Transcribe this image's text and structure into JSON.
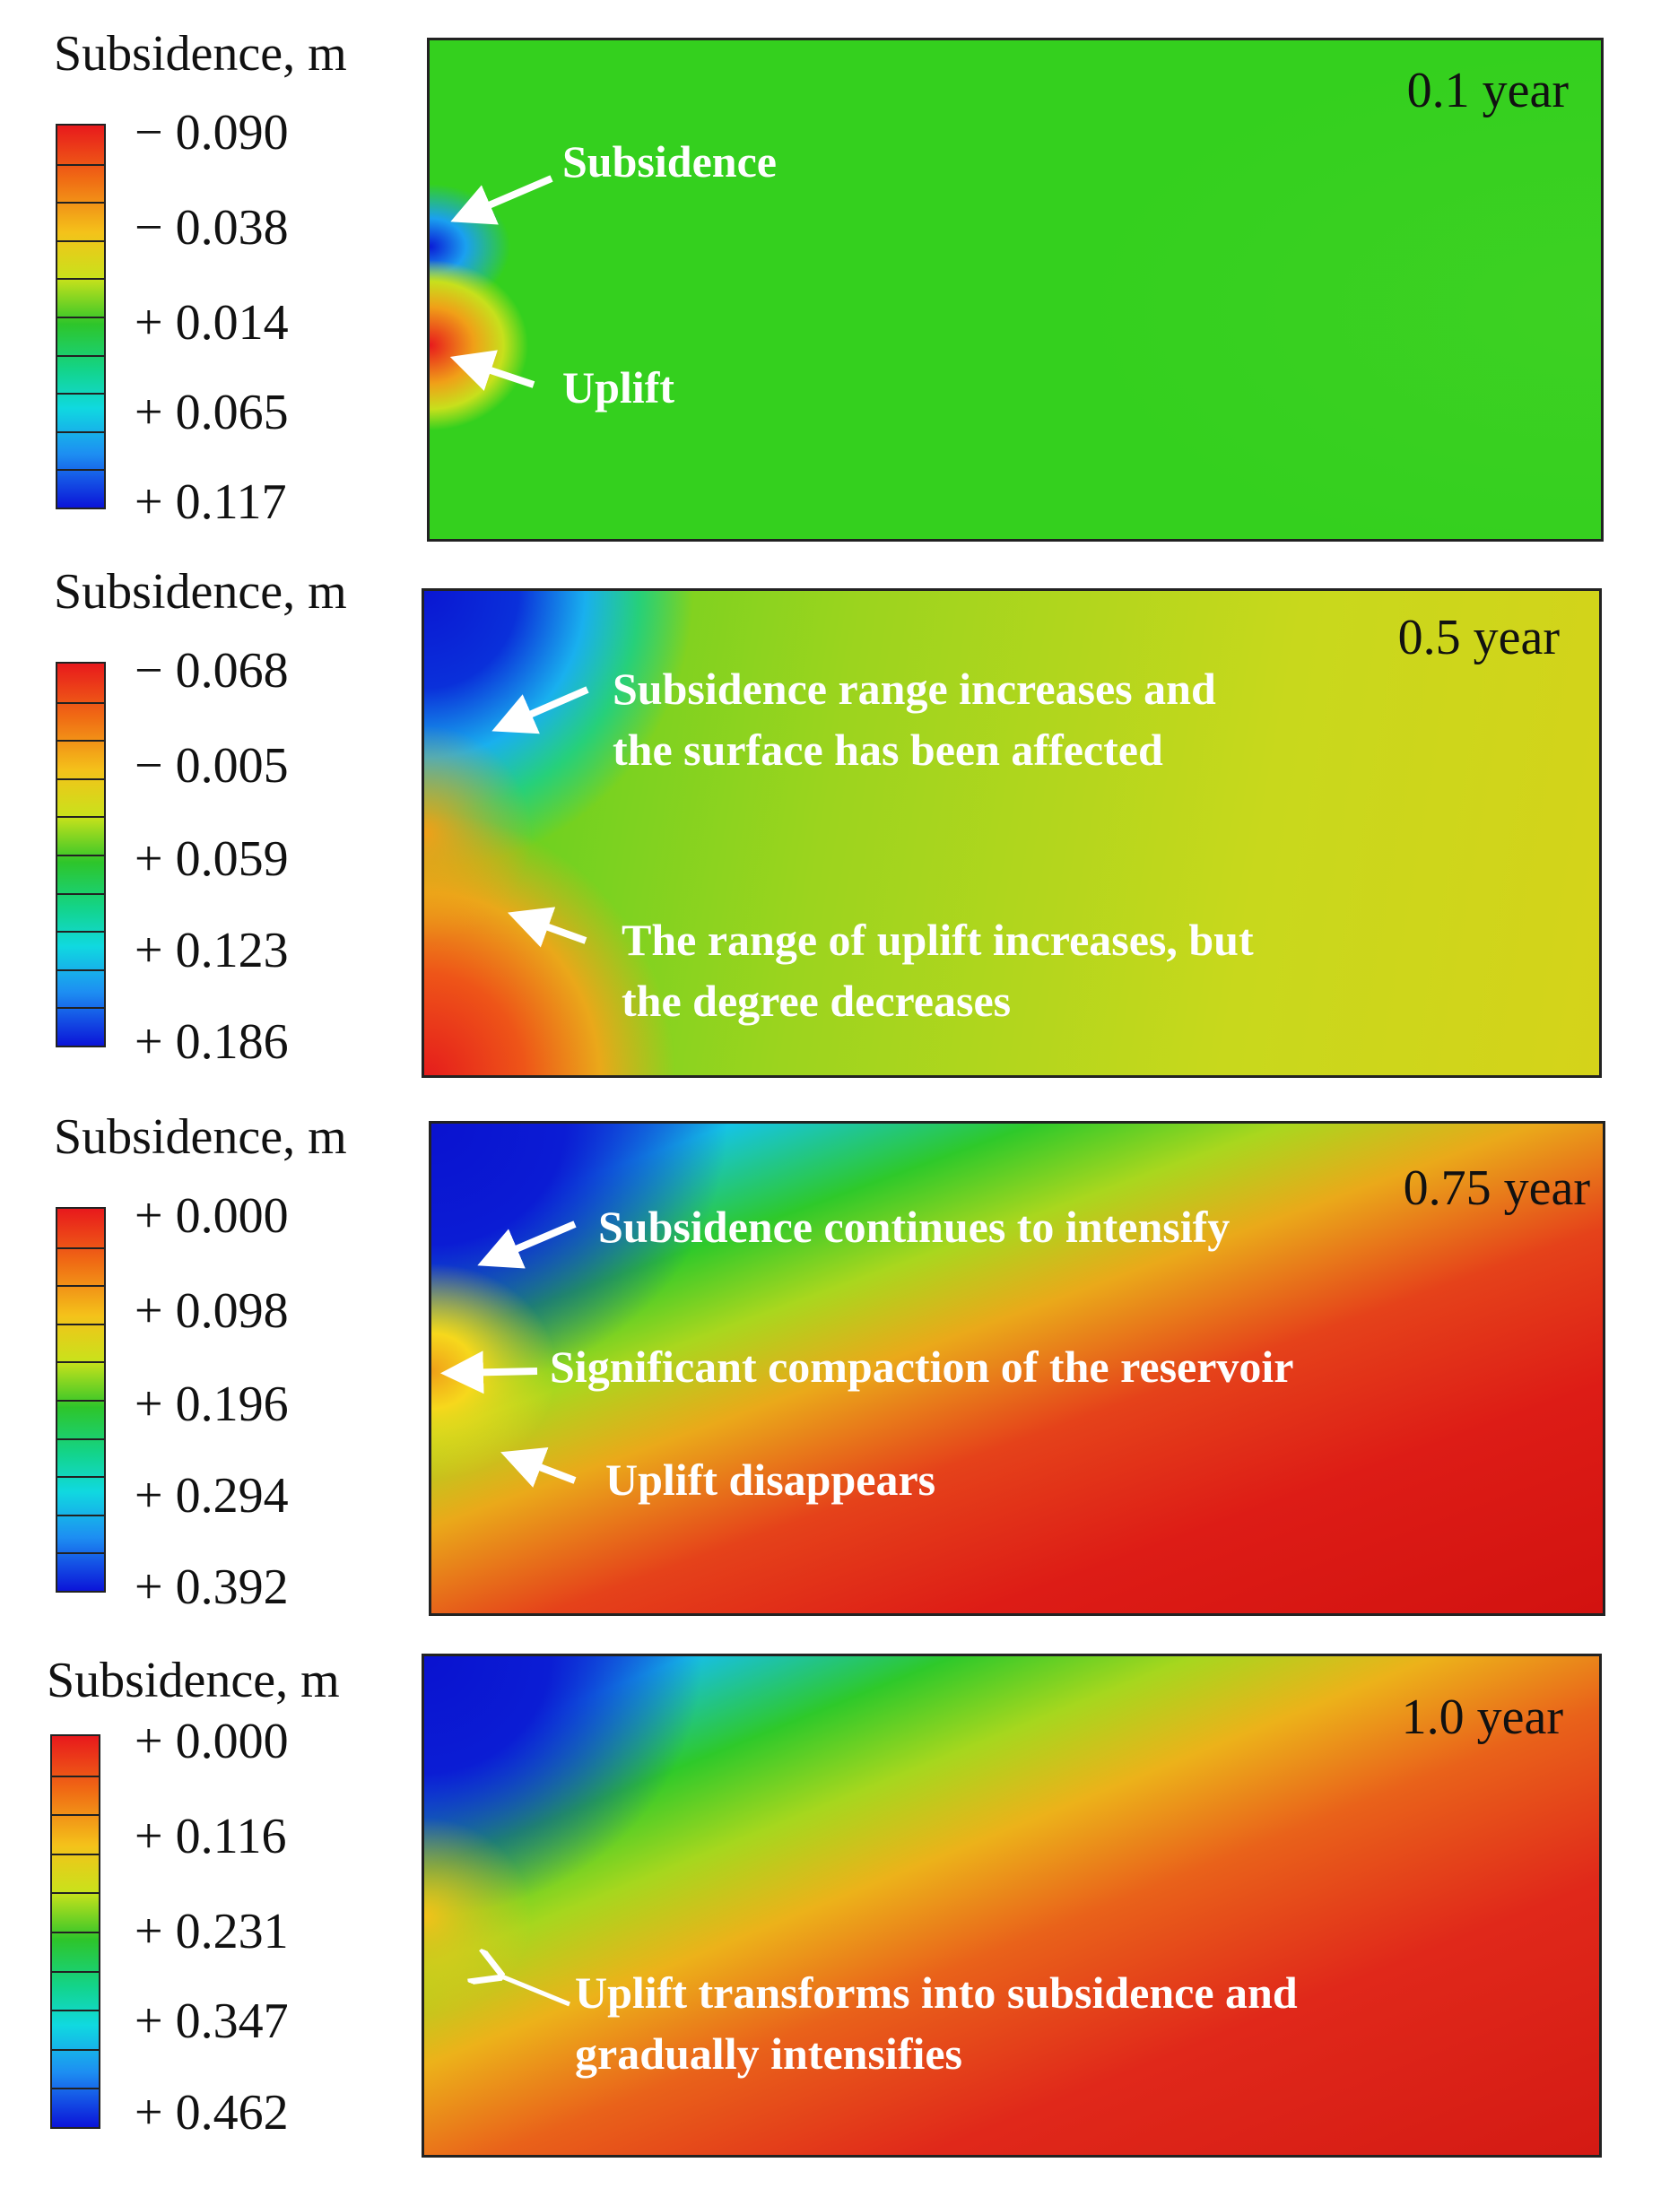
{
  "panels": [
    {
      "legend_title": "Subsidence, m",
      "ticks": [
        "− 0.090",
        "− 0.038",
        "+  0.014",
        "+  0.065",
        "+  0.117"
      ],
      "time": "0.1 year",
      "annotations": [
        "Subsidence",
        "Uplift"
      ]
    },
    {
      "legend_title": "Subsidence, m",
      "ticks": [
        "− 0.068",
        "− 0.005",
        "+  0.059",
        "+  0.123",
        "+  0.186"
      ],
      "time": "0.5 year",
      "annotations": [
        "Subsidence range increases and",
        "the surface has been affected",
        "The range of uplift increases, but",
        "the degree decreases"
      ]
    },
    {
      "legend_title": "Subsidence, m",
      "ticks": [
        "+ 0.000",
        "+  0.098",
        "+  0.196",
        "+  0.294",
        "+  0.392"
      ],
      "time": "0.75 year",
      "annotations": [
        "Subsidence continues to intensify",
        "Significant compaction of the reservoir",
        "Uplift disappears"
      ]
    },
    {
      "legend_title": "Subsidence, m",
      "ticks": [
        "+ 0.000",
        "+  0.116",
        "+  0.231",
        "+  0.347",
        "+  0.462"
      ],
      "time": "1.0 year",
      "annotations": [
        "Uplift transforms into subsidence and",
        "gradually intensifies"
      ]
    }
  ],
  "colors": {
    "red": "#e8191c",
    "orange": "#f06b14",
    "yellow": "#f4c21a",
    "green": "#2ec52a",
    "cyan": "#10d9e0",
    "blue": "#0b14d8",
    "annotation_text": "#ffffff"
  }
}
